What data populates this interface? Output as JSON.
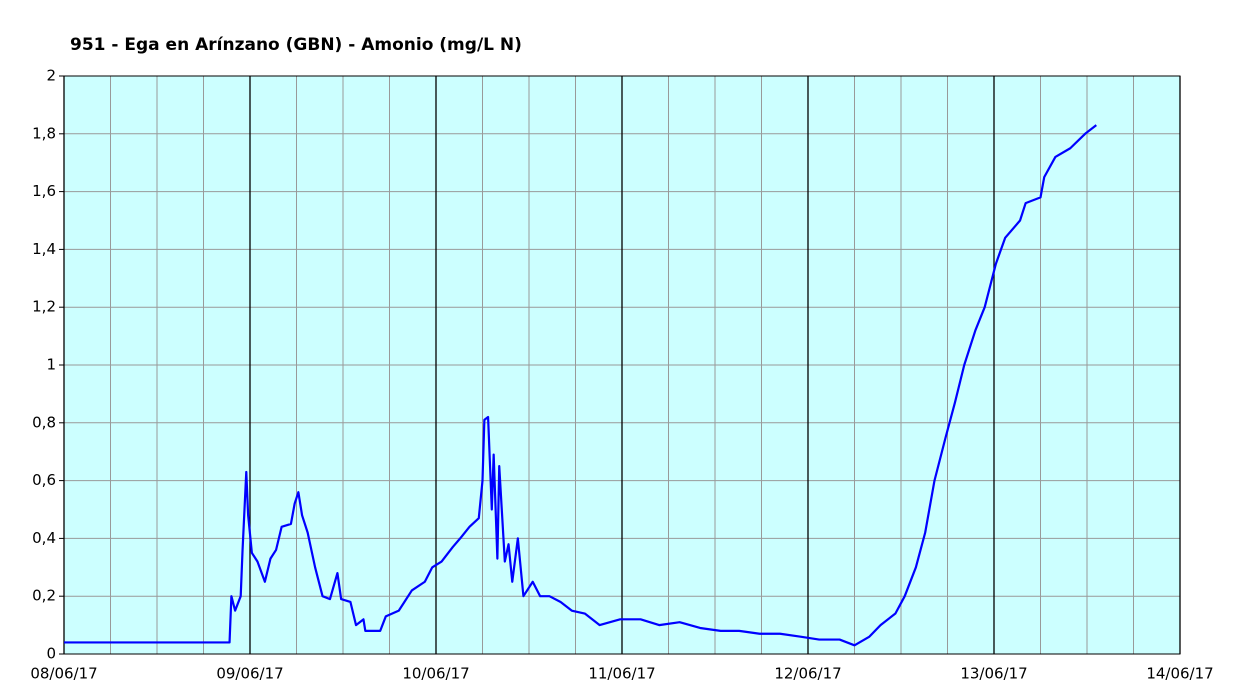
{
  "chart_data": {
    "type": "line",
    "title": "951 - Ega en Arínzano (GBN) - Amonio (mg/L N)",
    "x": [
      0,
      0.89,
      0.9,
      0.92,
      0.95,
      0.96,
      0.98,
      0.99,
      1.01,
      1.04,
      1.08,
      1.11,
      1.14,
      1.17,
      1.22,
      1.24,
      1.26,
      1.28,
      1.31,
      1.35,
      1.39,
      1.43,
      1.47,
      1.49,
      1.54,
      1.57,
      1.61,
      1.62,
      1.7,
      1.73,
      1.8,
      1.83,
      1.87,
      1.94,
      1.98,
      2.03,
      2.09,
      2.13,
      2.18,
      2.23,
      2.25,
      2.26,
      2.28,
      2.3,
      2.31,
      2.33,
      2.34,
      2.37,
      2.39,
      2.41,
      2.44,
      2.47,
      2.52,
      2.56,
      2.61,
      2.67,
      2.73,
      2.8,
      2.88,
      2.99,
      3.1,
      3.2,
      3.31,
      3.42,
      3.53,
      3.63,
      3.74,
      3.85,
      3.96,
      4.06,
      4.17,
      4.25,
      4.33,
      4.39,
      4.47,
      4.52,
      4.58,
      4.63,
      4.68,
      4.74,
      4.79,
      4.84,
      4.9,
      4.95,
      5.01,
      5.06,
      5.14,
      5.17,
      5.25,
      5.27,
      5.33,
      5.41,
      5.49,
      5.55
    ],
    "series": [
      {
        "color": "#0000ff",
        "values": [
          0.04,
          0.04,
          0.2,
          0.15,
          0.2,
          0.36,
          0.63,
          0.48,
          0.35,
          0.32,
          0.25,
          0.33,
          0.36,
          0.44,
          0.45,
          0.52,
          0.56,
          0.48,
          0.42,
          0.3,
          0.2,
          0.19,
          0.28,
          0.19,
          0.18,
          0.1,
          0.12,
          0.08,
          0.08,
          0.13,
          0.15,
          0.18,
          0.22,
          0.25,
          0.3,
          0.32,
          0.37,
          0.4,
          0.44,
          0.47,
          0.6,
          0.81,
          0.82,
          0.5,
          0.69,
          0.33,
          0.65,
          0.32,
          0.38,
          0.25,
          0.4,
          0.2,
          0.25,
          0.2,
          0.2,
          0.18,
          0.15,
          0.14,
          0.1,
          0.12,
          0.12,
          0.1,
          0.11,
          0.09,
          0.08,
          0.08,
          0.07,
          0.07,
          0.06,
          0.05,
          0.05,
          0.03,
          0.06,
          0.1,
          0.14,
          0.2,
          0.3,
          0.42,
          0.6,
          0.75,
          0.87,
          1.0,
          1.12,
          1.2,
          1.35,
          1.44,
          1.5,
          1.56,
          1.58,
          1.65,
          1.72,
          1.75,
          1.8,
          1.83
        ]
      }
    ],
    "xlim": [
      0,
      6
    ],
    "xticks": [
      {
        "value": 0,
        "label": "08/06/17"
      },
      {
        "value": 1,
        "label": "09/06/17"
      },
      {
        "value": 2,
        "label": "10/06/17"
      },
      {
        "value": 3,
        "label": "11/06/17"
      },
      {
        "value": 4,
        "label": "12/06/17"
      },
      {
        "value": 5,
        "label": "13/06/17"
      },
      {
        "value": 6,
        "label": "14/06/17"
      }
    ],
    "xminorticks": [
      0.25,
      0.5,
      0.75,
      1.25,
      1.5,
      1.75,
      2.25,
      2.5,
      2.75,
      3.25,
      3.5,
      3.75,
      4.25,
      4.5,
      4.75,
      5.25,
      5.5,
      5.75
    ],
    "ylim": [
      0,
      2
    ],
    "yticks": [
      0,
      {
        "value": 0.2,
        "label": "0,2"
      },
      {
        "value": 0.4,
        "label": "0,4"
      },
      {
        "value": 0.6,
        "label": "0,6"
      },
      {
        "value": 0.8,
        "label": "0,8"
      },
      1,
      {
        "value": 1.2,
        "label": "1,2"
      },
      {
        "value": 1.4,
        "label": "1,4"
      },
      {
        "value": 1.6,
        "label": "1,6"
      },
      {
        "value": 1.8,
        "label": "1,8"
      },
      2
    ],
    "grid": true
  }
}
